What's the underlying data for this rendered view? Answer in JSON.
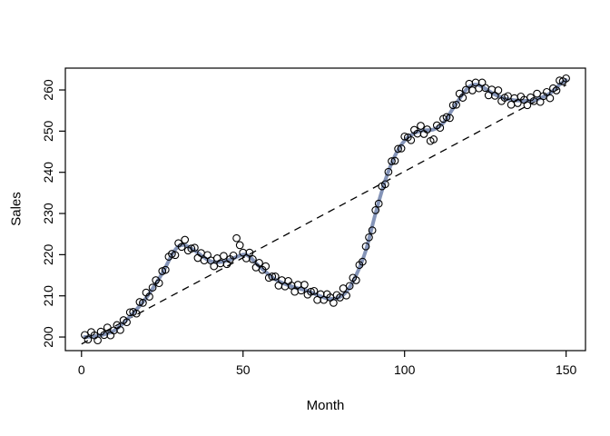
{
  "chart_data": {
    "type": "scatter",
    "title": "",
    "xlabel": "Month",
    "ylabel": "Sales",
    "xlim": [
      -5,
      156
    ],
    "ylim": [
      196.7,
      265.3
    ],
    "x_ticks": [
      0,
      50,
      100,
      150
    ],
    "y_ticks": [
      200,
      210,
      220,
      230,
      240,
      250,
      260
    ],
    "grid": false,
    "legend": "none",
    "x": {
      "start": 1,
      "step": 1,
      "count": 150
    },
    "points_y": [
      200.5,
      199.4,
      201.2,
      200.4,
      199.2,
      201.3,
      200.5,
      202.3,
      200.4,
      201.6,
      202.9,
      201.7,
      204.1,
      203.6,
      206.0,
      206.1,
      205.7,
      208.5,
      208.3,
      210.8,
      209.8,
      212.0,
      213.8,
      213.1,
      216.0,
      216.3,
      219.5,
      220.2,
      219.9,
      222.8,
      221.9,
      223.6,
      221.0,
      221.5,
      221.7,
      219.2,
      220.4,
      218.6,
      219.9,
      218.6,
      217.2,
      219.1,
      217.9,
      219.7,
      217.7,
      218.9,
      219.8,
      224.0,
      222.3,
      220.5,
      219.1,
      220.5,
      218.9,
      216.9,
      218.0,
      216.3,
      217.2,
      214.4,
      214.7,
      214.7,
      212.5,
      213.8,
      212.3,
      213.6,
      212.5,
      211.0,
      212.7,
      211.3,
      212.7,
      210.3,
      211.0,
      211.2,
      209.0,
      210.4,
      209.0,
      210.4,
      209.6,
      208.3,
      210.2,
      209.6,
      211.8,
      210.1,
      212.4,
      214.4,
      213.8,
      217.5,
      218.3,
      222.0,
      224.2,
      225.9,
      230.8,
      232.4,
      236.6,
      237.1,
      240.1,
      242.7,
      242.8,
      245.7,
      245.8,
      248.7,
      248.5,
      247.8,
      250.3,
      249.4,
      251.3,
      249.3,
      250.4,
      247.6,
      248.0,
      251.4,
      250.8,
      253.0,
      253.4,
      253.2,
      256.3,
      256.4,
      259.1,
      258.1,
      260.0,
      261.5,
      259.9,
      261.8,
      260.4,
      261.8,
      260.5,
      258.7,
      260.1,
      258.6,
      259.9,
      257.3,
      258.1,
      258.5,
      256.4,
      258.0,
      256.8,
      258.4,
      257.6,
      256.3,
      258.2,
      257.3,
      259.1,
      257.1,
      258.5,
      259.5,
      258.0,
      260.4,
      259.9,
      262.3,
      262.1,
      262.8
    ],
    "series": [
      {
        "name": "observed-points",
        "marker": "open-circle",
        "color": "#000000"
      },
      {
        "name": "loess-smooth",
        "style": "solid",
        "color": "#8494B8",
        "width": 4,
        "anchors": [
          [
            1,
            200.0
          ],
          [
            5,
            200.3
          ],
          [
            10,
            201.5
          ],
          [
            15,
            205.0
          ],
          [
            20,
            209.5
          ],
          [
            25,
            215.5
          ],
          [
            28,
            220.0
          ],
          [
            30,
            222.0
          ],
          [
            32,
            222.3
          ],
          [
            35,
            221.0
          ],
          [
            38,
            219.3
          ],
          [
            40,
            218.4
          ],
          [
            43,
            218.2
          ],
          [
            46,
            218.8
          ],
          [
            50,
            220.0
          ],
          [
            52,
            219.5
          ],
          [
            55,
            217.2
          ],
          [
            60,
            214.0
          ],
          [
            65,
            212.3
          ],
          [
            70,
            211.2
          ],
          [
            73,
            210.2
          ],
          [
            76,
            209.4
          ],
          [
            79,
            209.4
          ],
          [
            82,
            211.0
          ],
          [
            85,
            215.0
          ],
          [
            88,
            221.0
          ],
          [
            91,
            230.0
          ],
          [
            94,
            238.0
          ],
          [
            97,
            244.0
          ],
          [
            100,
            247.7
          ],
          [
            103,
            249.5
          ],
          [
            106,
            250.2
          ],
          [
            109,
            250.4
          ],
          [
            112,
            252.0
          ],
          [
            115,
            255.5
          ],
          [
            118,
            259.0
          ],
          [
            120,
            260.8
          ],
          [
            122,
            261.3
          ],
          [
            124,
            260.8
          ],
          [
            127,
            259.3
          ],
          [
            130,
            258.2
          ],
          [
            133,
            257.6
          ],
          [
            136,
            257.4
          ],
          [
            139,
            257.4
          ],
          [
            142,
            258.0
          ],
          [
            145,
            259.2
          ],
          [
            148,
            261.3
          ],
          [
            150,
            262.4
          ]
        ]
      },
      {
        "name": "linear-trend",
        "style": "dashed",
        "color": "#000000",
        "width": 1.3,
        "endpoints": [
          [
            0,
            198.3
          ],
          [
            150,
            261.2
          ]
        ]
      }
    ]
  },
  "colors": {
    "background": "#ffffff",
    "foreground": "#000000",
    "smooth_line": "#8494B8"
  }
}
